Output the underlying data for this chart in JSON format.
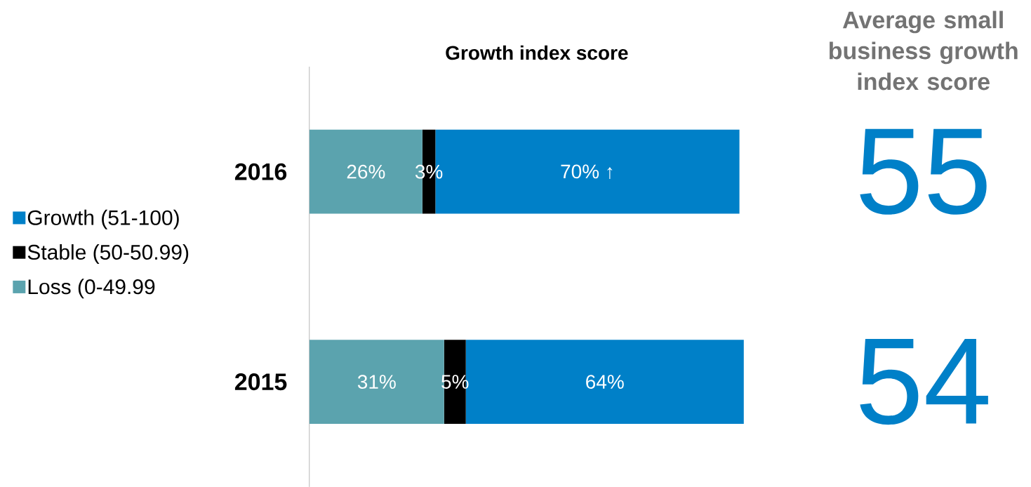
{
  "chart_data": {
    "type": "bar",
    "orientation": "horizontal",
    "stacked": true,
    "title": "Growth index score",
    "categories": [
      "2016",
      "2015"
    ],
    "series": [
      {
        "name": "Loss (0-49.99",
        "color": "#5ba3ae",
        "values": [
          26,
          31
        ],
        "value_labels": [
          "26%",
          "31%"
        ]
      },
      {
        "name": "Stable (50-50.99)",
        "color": "#000000",
        "values": [
          3,
          5
        ],
        "value_labels": [
          "3%",
          "5%"
        ]
      },
      {
        "name": "Growth (51-100)",
        "color": "#0080c8",
        "values": [
          70,
          64
        ],
        "value_labels": [
          "70% ↑",
          "64%"
        ]
      }
    ],
    "xlim": [
      0,
      100
    ],
    "tick_labels": "y",
    "legend": "left",
    "annotations": [
      "Average small business growth index score",
      "55",
      "54"
    ]
  }
}
